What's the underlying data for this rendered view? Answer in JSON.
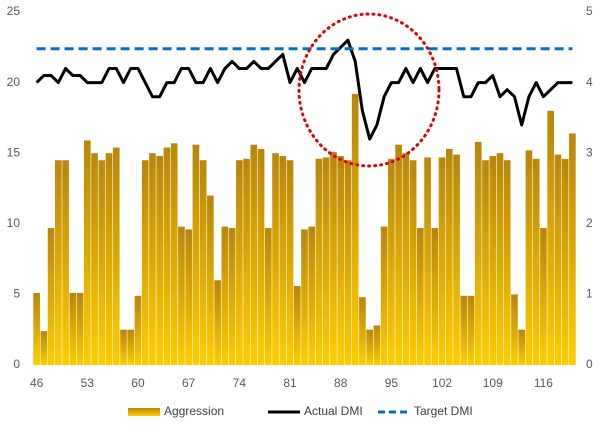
{
  "chart_data": {
    "type": "bar_line",
    "categories": [
      46,
      null,
      null,
      null,
      null,
      null,
      null,
      53,
      null,
      null,
      null,
      null,
      null,
      null,
      60,
      null,
      null,
      null,
      null,
      null,
      null,
      67,
      null,
      null,
      null,
      null,
      null,
      null,
      74,
      null,
      null,
      null,
      null,
      null,
      null,
      81,
      null,
      null,
      null,
      null,
      null,
      null,
      88,
      null,
      null,
      null,
      null,
      null,
      null,
      95,
      null,
      null,
      null,
      null,
      null,
      null,
      102,
      null,
      null,
      null,
      null,
      null,
      null,
      109,
      null,
      null,
      null,
      null,
      null,
      null,
      116,
      null,
      null,
      null,
      null
    ],
    "series": [
      {
        "name": "Aggression",
        "type": "bar",
        "axis": "y",
        "colors": [
          "#b8860b",
          "#ffcc00"
        ],
        "values": [
          5.1,
          2.4,
          9.7,
          14.5,
          14.5,
          5.1,
          5.1,
          15.9,
          15.0,
          14.5,
          15.0,
          15.4,
          2.5,
          2.5,
          4.9,
          14.5,
          15.0,
          14.8,
          15.4,
          15.7,
          9.8,
          9.6,
          15.6,
          14.5,
          12.0,
          6.0,
          9.8,
          9.7,
          14.5,
          14.6,
          15.6,
          15.3,
          9.7,
          15.0,
          14.8,
          14.5,
          5.6,
          9.6,
          9.8,
          14.6,
          14.7,
          15.1,
          14.8,
          14.5,
          19.2,
          4.8,
          2.5,
          2.8,
          9.8,
          14.6,
          15.6,
          15.0,
          14.5,
          9.7,
          14.7,
          9.7,
          14.7,
          15.3,
          14.9,
          4.9,
          4.9,
          15.8,
          14.5,
          14.8,
          15.0,
          14.5,
          5.0,
          2.5,
          15.2,
          14.6,
          9.7,
          18.0,
          14.9,
          14.6,
          16.4
        ]
      },
      {
        "name": "Actual DMI",
        "type": "line",
        "axis": "y2",
        "color": "#000000",
        "values": [
          4.0,
          4.1,
          4.1,
          4.0,
          4.2,
          4.1,
          4.1,
          4.0,
          4.0,
          4.0,
          4.2,
          4.2,
          4.0,
          4.2,
          4.2,
          4.0,
          3.8,
          3.8,
          4.0,
          4.0,
          4.2,
          4.2,
          4.0,
          4.0,
          4.2,
          4.0,
          4.2,
          4.3,
          4.2,
          4.2,
          4.3,
          4.2,
          4.2,
          4.3,
          4.4,
          4.0,
          4.2,
          4.0,
          4.2,
          4.2,
          4.2,
          4.4,
          4.5,
          4.6,
          4.3,
          3.6,
          3.2,
          3.4,
          3.8,
          4.0,
          4.0,
          4.2,
          4.0,
          4.2,
          4.0,
          4.2,
          4.2,
          4.2,
          4.2,
          3.8,
          3.8,
          4.0,
          4.0,
          4.1,
          3.8,
          3.9,
          3.8,
          3.4,
          3.8,
          4.0,
          3.8,
          3.9,
          4.0,
          4.0,
          4.0
        ]
      },
      {
        "name": "Target DMI",
        "type": "dashed",
        "axis": "y2",
        "color": "#0070c0",
        "values": [
          4.48,
          4.48,
          4.48,
          4.48,
          4.48,
          4.48,
          4.48,
          4.48,
          4.48,
          4.48,
          4.48,
          4.48,
          4.48,
          4.48,
          4.48,
          4.48,
          4.48,
          4.48,
          4.48,
          4.48,
          4.48,
          4.48,
          4.48,
          4.48,
          4.48,
          4.48,
          4.48,
          4.48,
          4.48,
          4.48,
          4.48,
          4.48,
          4.48,
          4.48,
          4.48,
          4.48,
          4.48,
          4.48,
          4.48,
          4.48,
          4.48,
          4.48,
          4.48,
          4.48,
          4.48,
          4.48,
          4.48,
          4.48,
          4.48,
          4.48,
          4.48,
          4.48,
          4.48,
          4.48,
          4.48,
          4.48,
          4.48,
          4.48,
          4.48,
          4.48,
          4.48,
          4.48,
          4.48,
          4.48,
          4.48,
          4.48,
          4.48,
          4.48,
          4.48,
          4.48,
          4.48,
          4.48,
          4.48,
          4.48,
          4.48
        ]
      }
    ],
    "ylim": [
      0,
      25
    ],
    "yticks": [
      0,
      5,
      10,
      15,
      20,
      25
    ],
    "y2lim": [
      0,
      5
    ],
    "y2ticks": [
      0,
      1,
      2,
      3,
      4,
      5
    ],
    "grid": false,
    "legend": "bottom"
  }
}
